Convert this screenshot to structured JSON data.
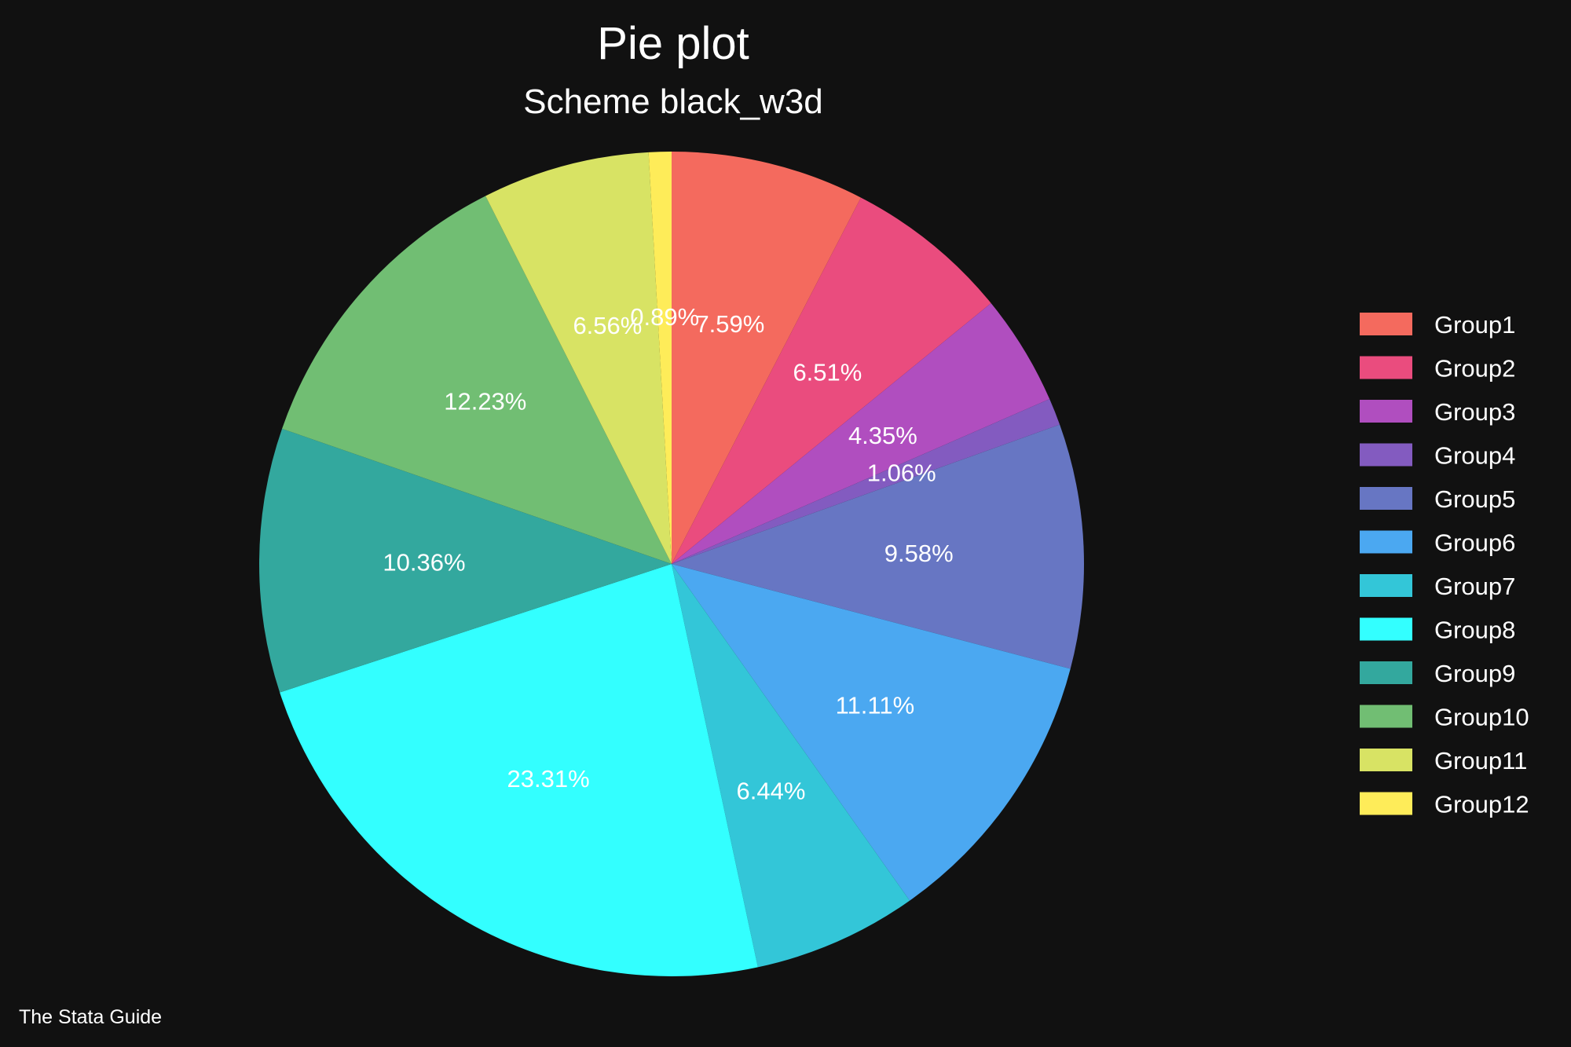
{
  "chart_data": {
    "type": "pie",
    "title": "Pie plot",
    "subtitle": "Scheme black_w3d",
    "note": "The Stata Guide",
    "legend_position": "right",
    "start": "12 o'clock, clockwise",
    "background": "#111111",
    "slices": [
      {
        "name": "Group1",
        "value": 7.59,
        "label": "7.59%",
        "color": "#F46A5E"
      },
      {
        "name": "Group2",
        "value": 6.51,
        "label": "6.51%",
        "color": "#EA4C7E"
      },
      {
        "name": "Group3",
        "value": 4.35,
        "label": "4.35%",
        "color": "#B04EBF"
      },
      {
        "name": "Group4",
        "value": 1.06,
        "label": "1.06%",
        "color": "#835BC0"
      },
      {
        "name": "Group5",
        "value": 9.58,
        "label": "9.58%",
        "color": "#6776C3"
      },
      {
        "name": "Group6",
        "value": 11.11,
        "label": "11.11%",
        "color": "#4BA8F1"
      },
      {
        "name": "Group7",
        "value": 6.44,
        "label": "6.44%",
        "color": "#33C6D8"
      },
      {
        "name": "Group8",
        "value": 23.31,
        "label": "23.31%",
        "color": "#33FFFF"
      },
      {
        "name": "Group9",
        "value": 10.36,
        "label": "10.36%",
        "color": "#33A89E"
      },
      {
        "name": "Group10",
        "value": 12.23,
        "label": "12.23%",
        "color": "#71BE73"
      },
      {
        "name": "Group11",
        "value": 6.56,
        "label": "6.56%",
        "color": "#D8E364"
      },
      {
        "name": "Group12",
        "value": 0.89,
        "label": "0.89%",
        "color": "#FEEC59"
      }
    ]
  }
}
